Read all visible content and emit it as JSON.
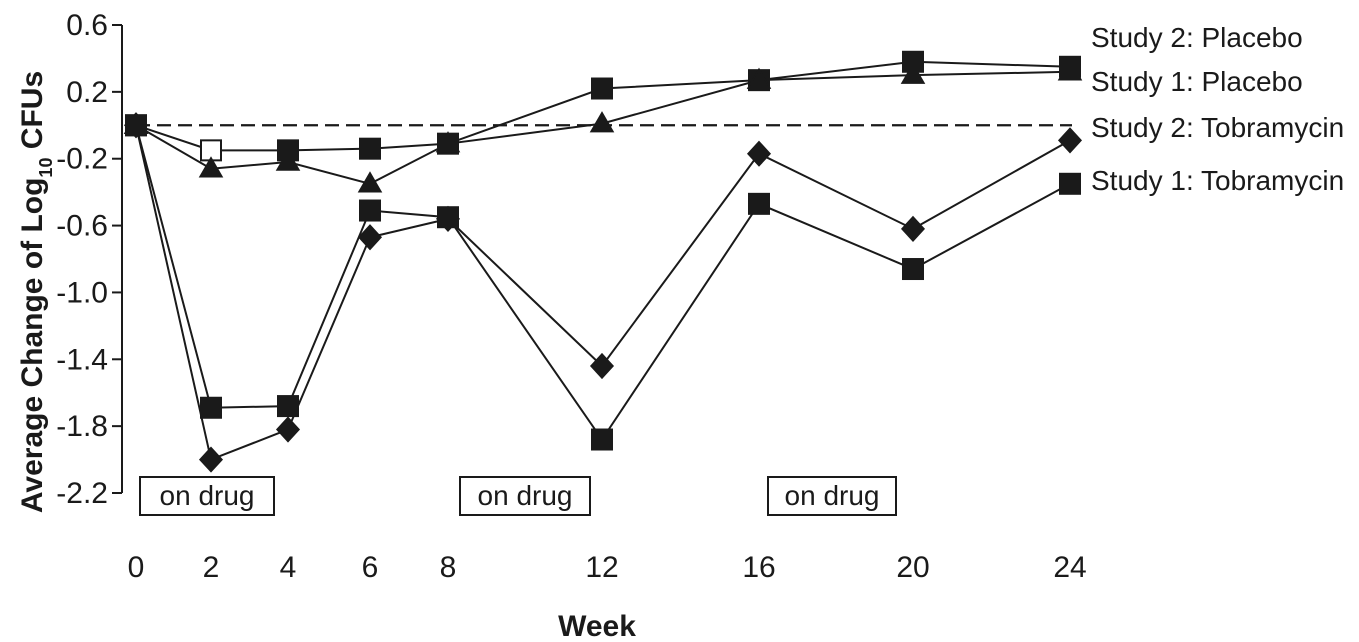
{
  "chart_data": {
    "type": "line",
    "xlabel": "Week",
    "ylabel_main": "Average Change of Log",
    "ylabel_sub": "10",
    "ylabel_tail": " CFUs",
    "x_ticks": [
      "0",
      "2",
      "4",
      "6",
      "8",
      "12",
      "16",
      "20",
      "24"
    ],
    "y_ticks": [
      "0.6",
      "0.2",
      "-0.2",
      "-0.6",
      "-1.0",
      "-1.4",
      "-1.8",
      "-2.2"
    ],
    "ylim": [
      -2.2,
      0.6
    ],
    "reference_line": 0,
    "annotations": [
      "on drug",
      "on drug",
      "on drug"
    ],
    "series": [
      {
        "name": "Study 2: Placebo",
        "marker": "square",
        "x": [
          0,
          2,
          4,
          6,
          8,
          12,
          16,
          20,
          24
        ],
        "y": [
          0,
          -0.15,
          -0.15,
          -0.14,
          -0.11,
          0.22,
          0.27,
          0.38,
          0.35
        ],
        "hollow_points": [
          1
        ]
      },
      {
        "name": "Study 1: Placebo",
        "marker": "triangle",
        "x": [
          0,
          2,
          4,
          6,
          8,
          12,
          16,
          20,
          24
        ],
        "y": [
          0,
          -0.26,
          -0.22,
          -0.35,
          -0.11,
          0.01,
          0.27,
          0.3,
          0.32
        ]
      },
      {
        "name": "Study 2: Tobramycin",
        "marker": "diamond",
        "x": [
          0,
          2,
          4,
          6,
          8,
          12,
          16,
          20,
          24
        ],
        "y": [
          0,
          -2.0,
          -1.82,
          -0.67,
          -0.56,
          -1.44,
          -0.17,
          -0.62,
          -0.09
        ]
      },
      {
        "name": "Study 1: Tobramycin",
        "marker": "square",
        "x": [
          0,
          2,
          4,
          6,
          8,
          12,
          16,
          20,
          24
        ],
        "y": [
          0,
          -1.69,
          -1.68,
          -0.51,
          -0.55,
          -1.88,
          -0.47,
          -0.86,
          -0.35
        ]
      }
    ]
  }
}
